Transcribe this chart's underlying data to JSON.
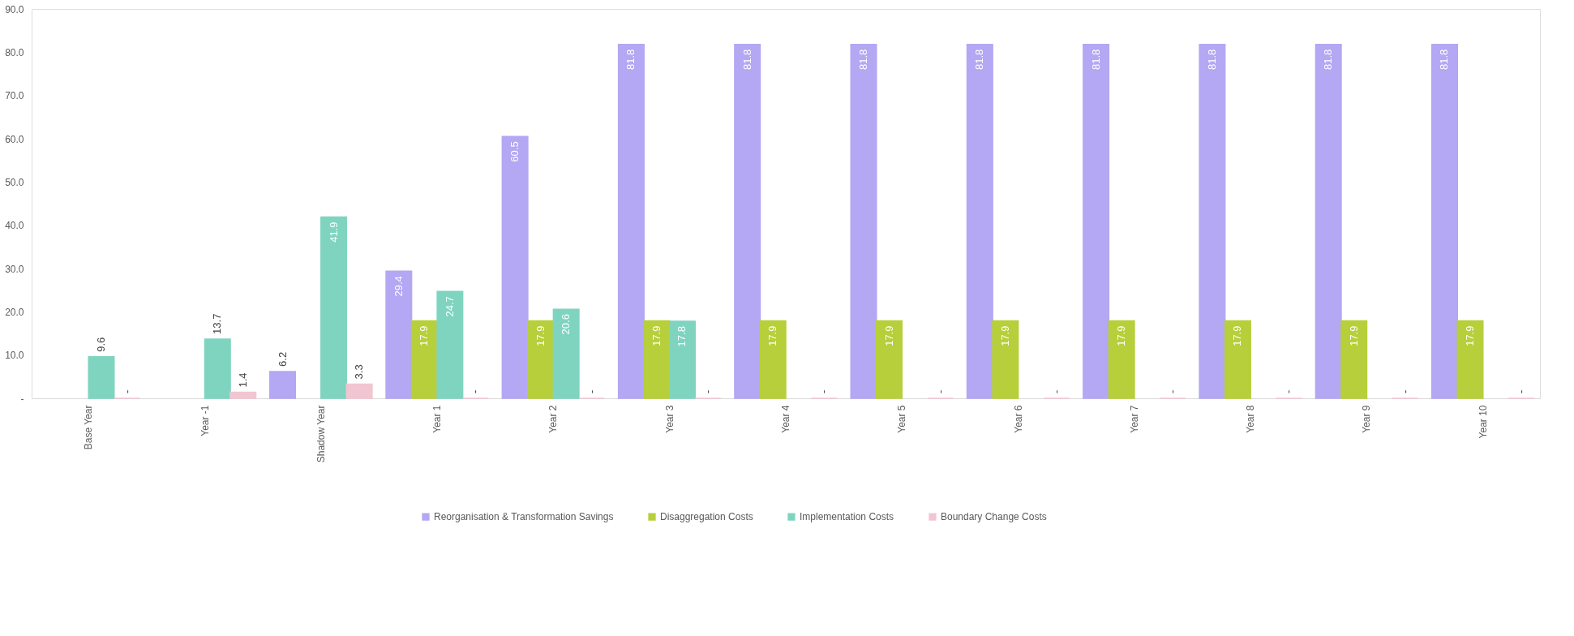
{
  "chart_data": {
    "type": "bar",
    "categories": [
      "Base Year",
      "Year -1",
      "Shadow Year",
      "Year 1",
      "Year 2",
      "Year 3",
      "Year 4",
      "Year 5",
      "Year 6",
      "Year 7",
      "Year 8",
      "Year 9",
      "Year 10"
    ],
    "series": [
      {
        "name": "Reorganisation & Transformation Savings",
        "color": "#b4a7f3",
        "values": [
          null,
          null,
          6.2,
          29.4,
          60.5,
          81.8,
          81.8,
          81.8,
          81.8,
          81.8,
          81.8,
          81.8,
          81.8
        ]
      },
      {
        "name": "Disaggregation Costs",
        "color": "#b7cf3a",
        "values": [
          null,
          null,
          null,
          17.9,
          17.9,
          17.9,
          17.9,
          17.9,
          17.9,
          17.9,
          17.9,
          17.9,
          17.9
        ]
      },
      {
        "name": "Implementation Costs",
        "color": "#7fd4c0",
        "values": [
          9.6,
          13.7,
          41.9,
          24.7,
          20.6,
          17.8,
          null,
          null,
          null,
          null,
          null,
          null,
          null
        ]
      },
      {
        "name": "Boundary Change  Costs",
        "color": "#f2c5d2",
        "values": [
          0,
          1.4,
          3.3,
          0,
          0,
          0,
          0,
          0,
          0,
          0,
          0,
          0,
          0
        ],
        "value_labels": [
          "-",
          "1.4",
          "3.3",
          "-",
          "-",
          "-",
          "-",
          "-",
          "-",
          "-",
          "-",
          "-",
          "-"
        ]
      }
    ],
    "data_labels": true,
    "ylim": [
      0,
      90
    ],
    "yticks": [
      {
        "value": 0,
        "label": "-"
      },
      {
        "value": 10,
        "label": "10.0"
      },
      {
        "value": 20,
        "label": "20.0"
      },
      {
        "value": 30,
        "label": "30.0"
      },
      {
        "value": 40,
        "label": "40.0"
      },
      {
        "value": 50,
        "label": "50.0"
      },
      {
        "value": 60,
        "label": "60.0"
      },
      {
        "value": 70,
        "label": "70.0"
      },
      {
        "value": 80,
        "label": "80.0"
      },
      {
        "value": 90,
        "label": "90.0"
      }
    ],
    "grid": false,
    "legend": "bottom"
  }
}
